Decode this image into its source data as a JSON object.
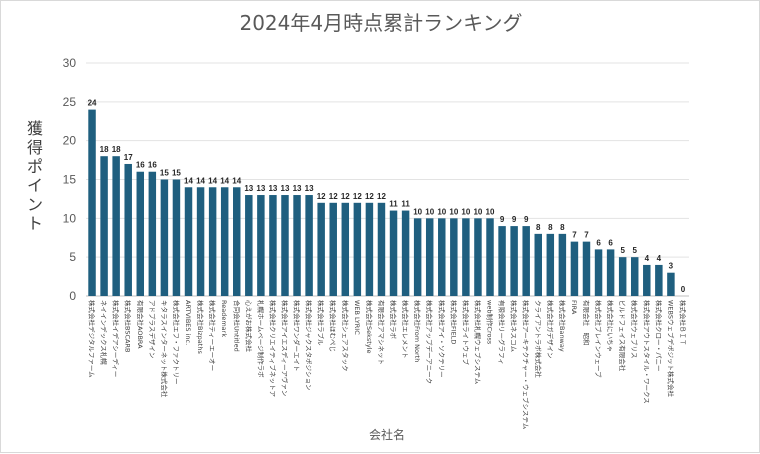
{
  "chart_data": {
    "type": "bar",
    "title": "2024年4月時点累計ランキング",
    "xlabel": "会社名",
    "ylabel": "獲得ポイント",
    "ylim": [
      0,
      30
    ],
    "yticks": [
      0,
      5,
      10,
      15,
      20,
      25,
      30
    ],
    "grid": true,
    "bar_color": "#1f5f7f",
    "categories": [
      "株式会社デジタルファーム",
      "ネイインデックス札幌",
      "株式会社イデアシーディー",
      "株式会社BSCARB",
      "有限会社AOBRA",
      "アドプラスデザイン",
      "キタラスインターネット株式会社",
      "株式会社エフ・ファクトリー",
      "ARTVIBES inc.",
      "株式会社Bizpaths",
      "株式会社ティーエーオー",
      "Reademark",
      "合同会社Untitled",
      "心えがお株式会社",
      "札幌ホームページ制作ラボ",
      "株式会社クリエイティブネットア",
      "株式会社アイエスディーアヴァン",
      "株式会社ワンダーエイト",
      "株式会社ジャクスタポジション",
      "株式会社ラブル",
      "株式会社ほむぺじ",
      "株式会社シェアスタック",
      "WEB LYRIC",
      "株式会社Sekstyle",
      "有限会社アマシネット",
      "株式会社ラボ",
      "株式会社エレメント",
      "株式会社From North",
      "株式会社アップデーアニーク",
      "株式会社アイ・ソクテリー",
      "株式会社FIELD",
      "株式会社ライトウェブ",
      "株式会社札幌ウェブシステム",
      "web制作Cross",
      "有限会社リーグラフィ",
      "株式会社ネスコム",
      "株式会社アーキテクチャー・ウェブシステム",
      "クライアントラボ株式会社",
      "株式会社ガデザイン",
      "株式会社Banway",
      "FIRA",
      "有限会社　昭和",
      "株式会社ブレインウェーブ",
      "株式会社にいちゃ",
      "ビルドフェイス有限会社",
      "株式会社ウェブリス",
      "株式会社アウトスタイル・ワークス",
      "株式会社クロー・パニー",
      "WEBSウェブデポジット株式会社",
      "株式会社ＢＩＴ"
    ],
    "values": [
      24,
      18,
      18,
      17,
      16,
      16,
      15,
      15,
      14,
      14,
      14,
      14,
      14,
      13,
      13,
      13,
      13,
      13,
      13,
      12,
      12,
      12,
      12,
      12,
      12,
      11,
      11,
      10,
      10,
      10,
      10,
      10,
      10,
      10,
      9,
      9,
      9,
      8,
      8,
      8,
      7,
      7,
      6,
      6,
      5,
      5,
      4,
      4,
      3,
      0
    ]
  }
}
